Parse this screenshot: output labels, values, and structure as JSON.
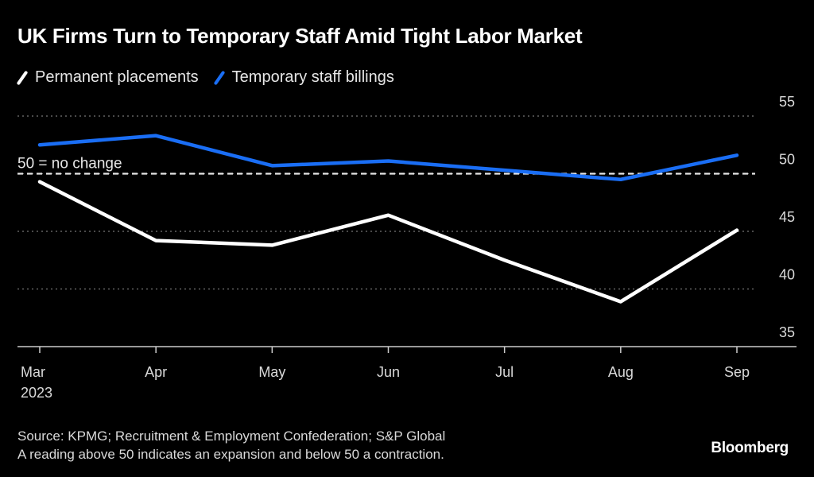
{
  "chart_data": {
    "type": "line",
    "title": "UK Firms Turn to Temporary Staff Amid Tight Labor Market",
    "xlabel": "",
    "ylabel": "",
    "categories": [
      "Mar",
      "Apr",
      "May",
      "Jun",
      "Jul",
      "Aug",
      "Sep"
    ],
    "x_sublabel": "2023",
    "series": [
      {
        "name": "Permanent placements",
        "color": "#ffffff",
        "values": [
          49.3,
          44.2,
          43.8,
          46.4,
          42.5,
          38.9,
          45.1
        ]
      },
      {
        "name": "Temporary staff billings",
        "color": "#1a6ef5",
        "values": [
          52.5,
          53.3,
          50.7,
          51.1,
          50.3,
          49.5,
          51.6
        ]
      }
    ],
    "ylim": [
      35,
      55
    ],
    "yticks": [
      35,
      40,
      45,
      50,
      55
    ],
    "grid": true,
    "legend_position": "top-left",
    "reference_line": {
      "value": 50,
      "label": "50 = no change"
    },
    "y_axis_side": "right"
  },
  "footer": {
    "source": "Source: KPMG; Recruitment & Employment Confederation; S&P Global",
    "note": "A reading above 50 indicates an expansion and below 50 a contraction."
  },
  "brand": "Bloomberg"
}
